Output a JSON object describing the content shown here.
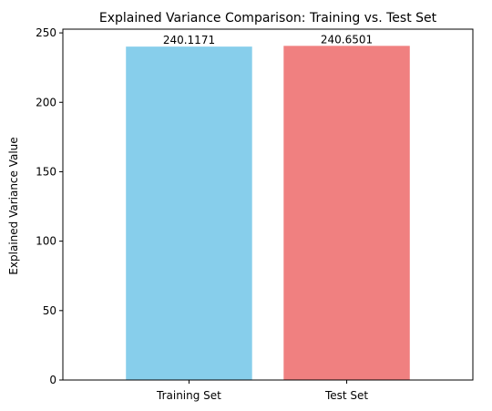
{
  "chart_data": {
    "type": "bar",
    "title": "Explained Variance Comparison: Training vs. Test Set",
    "xlabel": "",
    "ylabel": "Explained Variance Value",
    "categories": [
      "Training Set",
      "Test Set"
    ],
    "values": [
      240.1171,
      240.6501
    ],
    "value_labels": [
      "240.1171",
      "240.6501"
    ],
    "colors": [
      "#87ceeb",
      "#f08080"
    ],
    "ylim": [
      0,
      252.68
    ],
    "yticks": [
      0,
      50,
      100,
      150,
      200,
      250
    ],
    "grid": false,
    "legend": "none"
  }
}
